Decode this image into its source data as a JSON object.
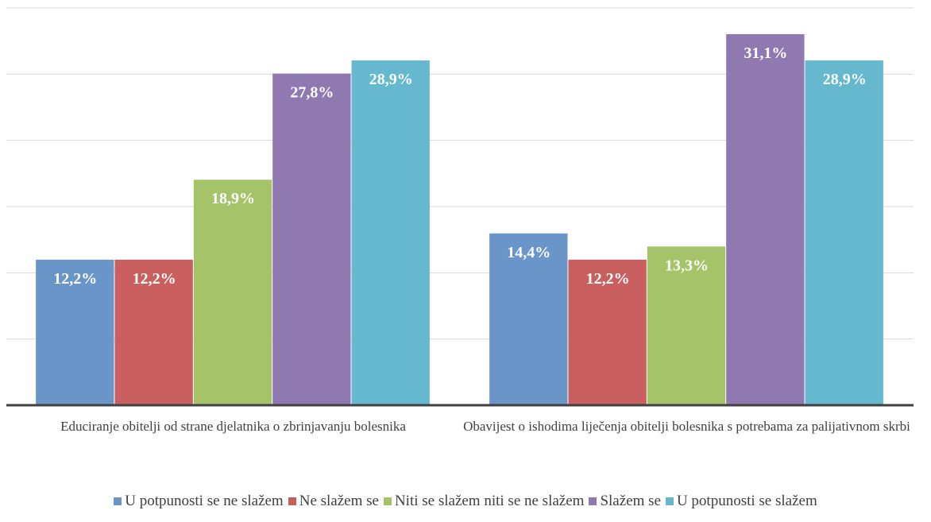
{
  "chart_data": {
    "type": "bar",
    "categories": [
      "Educiranje obitelji od strane djelatnika o zbrinjavanju bolesnika",
      "Obavijest o ishodima liječenja obitelji  bolesnika s potrebama za palijativnom skrbi"
    ],
    "series": [
      {
        "name": "U potpunosti se ne slažem",
        "color": "#6a95c9",
        "values": [
          12.2,
          14.4
        ],
        "value_labels": [
          "12,2%",
          "14,4%"
        ]
      },
      {
        "name": "Ne slažem se",
        "color": "#c9605f",
        "values": [
          12.2,
          12.2
        ],
        "value_labels": [
          "12,2%",
          "12,2%"
        ]
      },
      {
        "name": "Niti se slažem niti se ne slažem",
        "color": "#a5c46a",
        "values": [
          18.9,
          13.3
        ],
        "value_labels": [
          "18,9%",
          "13,3%"
        ]
      },
      {
        "name": "Slažem se",
        "color": "#9079b0",
        "values": [
          27.8,
          31.1
        ],
        "value_labels": [
          "27,8%",
          "31,1%"
        ]
      },
      {
        "name": "U potpunosti se slažem",
        "color": "#66b8cf",
        "values": [
          28.9,
          28.9
        ],
        "value_labels": [
          "28,9%",
          "28,9%"
        ]
      }
    ],
    "ylim": [
      0,
      33.3
    ],
    "yticks": [
      0,
      5.55,
      11.1,
      16.65,
      22.2,
      27.75,
      33.3
    ],
    "grid": true,
    "legend": "bottom"
  }
}
